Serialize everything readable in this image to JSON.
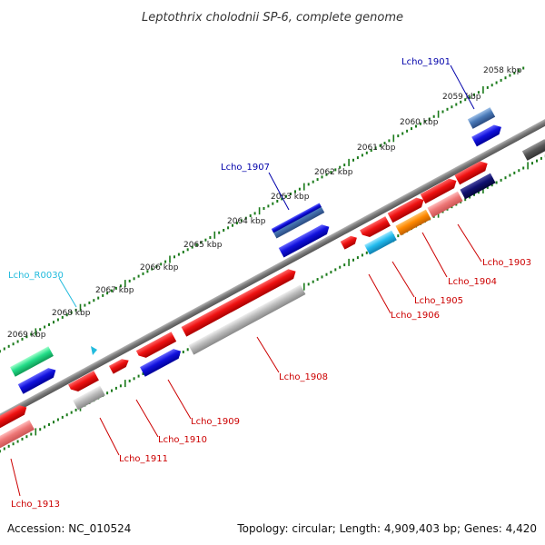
{
  "title": "Leptothrix cholodnii SP-6, complete genome",
  "footer": {
    "accession": "Accession: NC_010524",
    "summary": "Topology: circular; Length: 4,909,403 bp; Genes: 4,420"
  },
  "scale_labels": [
    "2058 kbp",
    "2059 kbp",
    "2060 kbp",
    "2061 kbp",
    "2062 kbp",
    "2063 kbp",
    "2064 kbp",
    "2065 kbp",
    "2066 kbp",
    "2067 kbp",
    "2068 kbp",
    "2069 kbp"
  ],
  "gene_labels": {
    "lcho_1901": "Lcho_1901",
    "lcho_1903": "Lcho_1903",
    "lcho_1904": "Lcho_1904",
    "lcho_1905": "Lcho_1905",
    "lcho_1906": "Lcho_1906",
    "lcho_1907": "Lcho_1907",
    "lcho_1908": "Lcho_1908",
    "lcho_1909": "Lcho_1909",
    "lcho_1910": "Lcho_1910",
    "lcho_1911": "Lcho_1911",
    "lcho_1913": "Lcho_1913",
    "lcho_r0030": "Lcho_R0030"
  },
  "colors": {
    "backbone": "#7a7a7a",
    "tick": "#1a7a1a",
    "red": "#ee1111",
    "pink": "#ee7777",
    "blue": "#1111dd",
    "navy": "#101070",
    "steel": "#4a7ab8",
    "cyan": "#22bbee",
    "orange": "#ff8800",
    "green": "#22dd88",
    "gray": "#aaaaaa",
    "darkgray": "#555555",
    "label_red": "#cc0000",
    "label_blue": "#0000aa",
    "label_cyan": "#22bbdd"
  }
}
